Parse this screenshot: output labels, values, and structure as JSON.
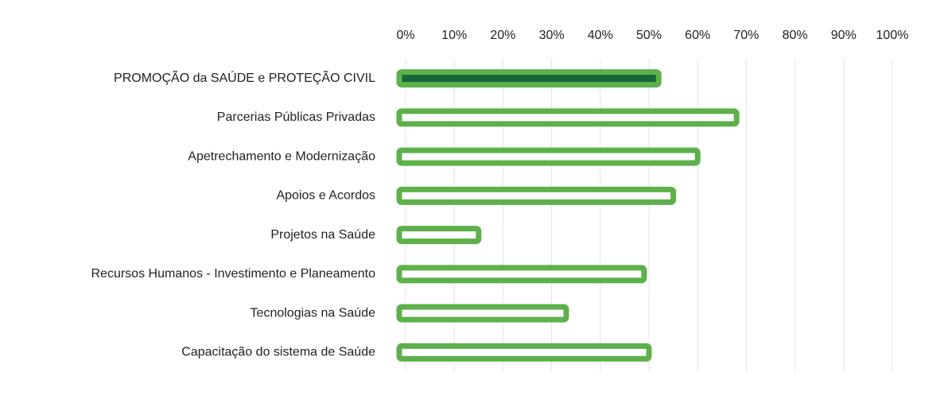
{
  "chart_data": {
    "type": "barh",
    "categories": [
      "PROMOÇÃO da SAÚDE e PROTEÇÃO CIVIL",
      "Parcerias Públicas Privadas",
      "Apetrechamento e Modernização",
      "Apoios e Acordos",
      "Projetos na Saúde",
      "Recursos Humanos - Investimento e Planeamento",
      "Tecnologias na Saúde",
      "Capacitação do sistema de Saúde"
    ],
    "values": [
      52,
      68,
      60,
      55,
      15,
      49,
      33,
      50
    ],
    "color": "#5db14b",
    "fills": [
      "#16663a",
      "#ffffff",
      "#ffffff",
      "#ffffff",
      "#ffffff",
      "#ffffff",
      "#ffffff",
      "#ffffff"
    ],
    "xlim": [
      0,
      100
    ],
    "xticks": [
      {
        "value": 0,
        "label": "0%"
      },
      {
        "value": 10,
        "label": "10%"
      },
      {
        "value": 20,
        "label": "20%"
      },
      {
        "value": 30,
        "label": "30%"
      },
      {
        "value": 40,
        "label": "40%"
      },
      {
        "value": 50,
        "label": "50%"
      },
      {
        "value": 60,
        "label": "60%"
      },
      {
        "value": 70,
        "label": "70%"
      },
      {
        "value": 80,
        "label": "80%"
      },
      {
        "value": 90,
        "label": "90%"
      },
      {
        "value": 100,
        "label": "100%"
      }
    ],
    "grid": true
  }
}
